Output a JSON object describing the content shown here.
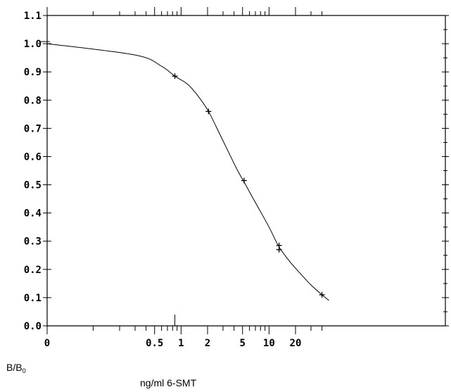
{
  "chart_data": {
    "type": "scatter",
    "title": "",
    "xlabel": "ng/ml 6-SMT",
    "ylabel": {
      "main": "B/B",
      "sub": "0"
    },
    "x_scale": "log",
    "x_ticks": [
      {
        "value": 0,
        "label": "0"
      },
      {
        "value": 0.5,
        "label": "0.5"
      },
      {
        "value": 1,
        "label": "1"
      },
      {
        "value": 2,
        "label": "2"
      },
      {
        "value": 5,
        "label": "5"
      },
      {
        "value": 10,
        "label": "10"
      },
      {
        "value": 20,
        "label": "20"
      }
    ],
    "y_ticks": [
      "0.0",
      "0.1",
      "0.2",
      "0.3",
      "0.4",
      "0.5",
      "0.6",
      "0.7",
      "0.8",
      "0.9",
      "1.0",
      "1.1"
    ],
    "ylim": [
      0,
      1.1
    ],
    "grid": false,
    "series": [
      {
        "points": [
          {
            "x": 0.85,
            "y": 0.885
          },
          {
            "x": 2.05,
            "y": 0.76
          },
          {
            "x": 5.2,
            "y": 0.515
          },
          {
            "x": 13,
            "y": 0.285
          },
          {
            "x": 13,
            "y": 0.27
          },
          {
            "x": 40,
            "y": 0.11
          }
        ],
        "fit_curve": [
          [
            0,
            1.0
          ],
          [
            0.3,
            0.96
          ],
          [
            0.6,
            0.92
          ],
          [
            0.85,
            0.885
          ],
          [
            1.2,
            0.855
          ],
          [
            1.6,
            0.81
          ],
          [
            2.05,
            0.76
          ],
          [
            2.8,
            0.675
          ],
          [
            3.6,
            0.605
          ],
          [
            4.4,
            0.55
          ],
          [
            5.2,
            0.51
          ],
          [
            6.5,
            0.455
          ],
          [
            8.0,
            0.405
          ],
          [
            10,
            0.35
          ],
          [
            13,
            0.28
          ],
          [
            17,
            0.23
          ],
          [
            22,
            0.19
          ],
          [
            30,
            0.145
          ],
          [
            40,
            0.11
          ],
          [
            48,
            0.09
          ]
        ]
      }
    ]
  }
}
